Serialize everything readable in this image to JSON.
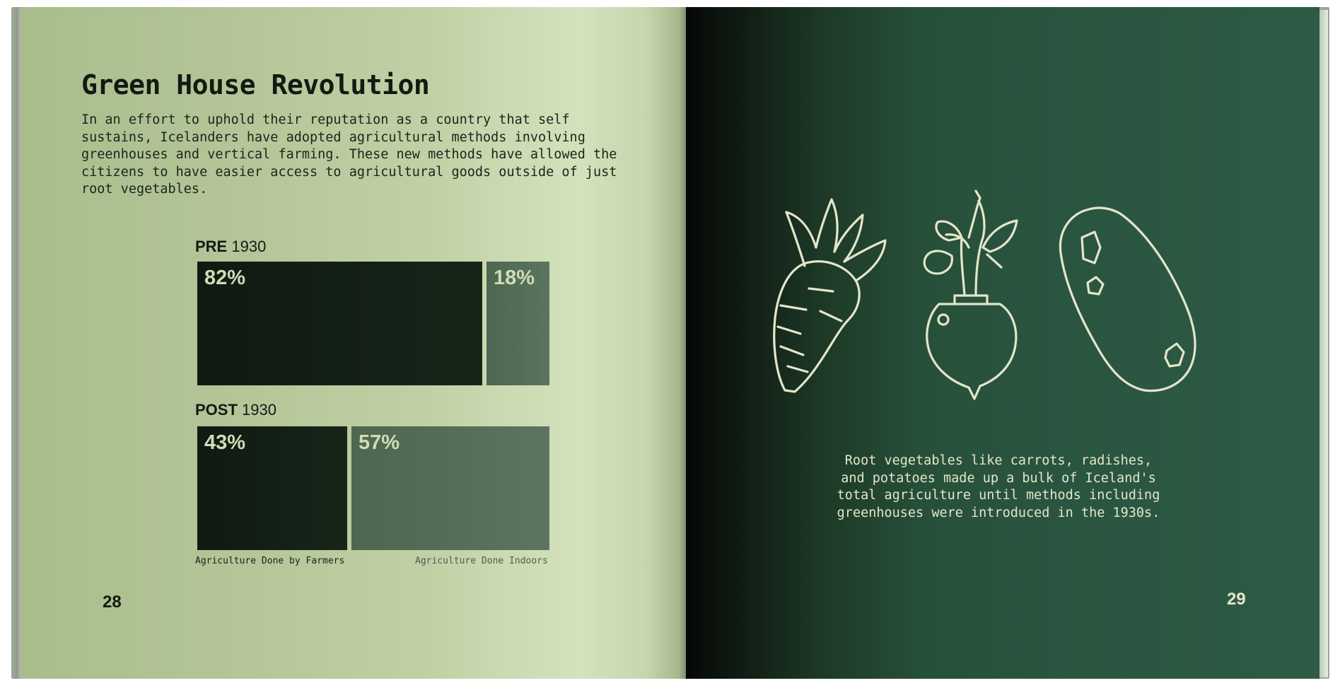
{
  "left_page": {
    "title": "Green House Revolution",
    "paragraph": "In an effort to uphold their reputation as a country that self sustains, Icelanders have adopted agricultural methods involving greenhouses and vertical farming. These new methods have allowed the citizens to have easier access to agricultural goods outside of just root vegetables.",
    "page_number": "28"
  },
  "chart_data": {
    "type": "bar",
    "orientation": "horizontal-stacked",
    "categories": [
      "PRE 1930",
      "POST 1930"
    ],
    "category_labels": [
      {
        "bold": "PRE",
        "year": "1930"
      },
      {
        "bold": "POST",
        "year": "1930"
      }
    ],
    "series": [
      {
        "name": "Agriculture Done by Farmers",
        "values": [
          82,
          43
        ],
        "labels": [
          "82%",
          "43%"
        ],
        "color": "#131f15"
      },
      {
        "name": "Agriculture Done Indoors",
        "values": [
          18,
          57
        ],
        "labels": [
          "18%",
          "57%"
        ],
        "color": "#56705a"
      }
    ],
    "unit": "%",
    "legend_placement": "bottom"
  },
  "right_page": {
    "icons": [
      "carrot-icon",
      "radish-icon",
      "potato-icon"
    ],
    "caption": "Root vegetables like carrots, radishes, and potatoes made up a bulk of Iceland's total agriculture until methods including greenhouses were introduced in the 1930s.",
    "page_number": "29",
    "line_color": "#e4e6c9"
  }
}
